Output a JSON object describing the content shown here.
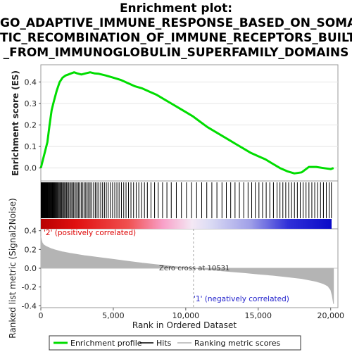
{
  "title_lines": [
    "Enrichment plot:",
    "GO_ADAPTIVE_IMMUNE_RESPONSE_BASED_ON_SOMA",
    "TIC_RECOMBINATION_OF_IMMUNE_RECEPTORS_BUILT",
    "_FROM_IMMUNOGLOBULIN_SUPERFAMILY_DOMAINS"
  ],
  "chart_data": {
    "type": "line",
    "title": "Enrichment plot: GO_ADAPTIVE_IMMUNE_RESPONSE_BASED_ON_SOMATIC_RECOMBINATION_OF_IMMUNE_RECEPTORS_BUILT_FROM_IMMUNOGLOBULIN_SUPERFAMILY_DOMAINS",
    "xlabel": "Rank in Ordered Dataset",
    "xlim": [
      0,
      20500
    ],
    "x_ticks": [
      0,
      5000,
      10000,
      15000,
      20000
    ],
    "x_tick_labels": [
      "0",
      "5,000",
      "10,000",
      "15,000",
      "20,000"
    ],
    "es_panel": {
      "ylabel": "Enrichment score (ES)",
      "ylim": [
        -0.06,
        0.48
      ],
      "y_ticks": [
        0.0,
        0.1,
        0.2,
        0.3,
        0.4
      ],
      "y_tick_labels": [
        "0.0",
        "0.1",
        "0.2",
        "0.3",
        "0.4"
      ],
      "series": [
        {
          "name": "Enrichment profile",
          "color": "#00dd00",
          "x": [
            0,
            150,
            300,
            450,
            600,
            750,
            900,
            1100,
            1300,
            1500,
            1700,
            1900,
            2100,
            2300,
            2500,
            2800,
            3100,
            3400,
            3700,
            4000,
            4500,
            5000,
            5500,
            6000,
            6500,
            7000,
            7500,
            8000,
            8500,
            9000,
            9500,
            10000,
            10500,
            11000,
            11500,
            12000,
            12500,
            13000,
            13500,
            14000,
            14500,
            15000,
            15500,
            16000,
            16500,
            17000,
            17500,
            18000,
            18200,
            18500,
            19000,
            19500,
            20000,
            20200
          ],
          "y": [
            0.0,
            0.04,
            0.08,
            0.12,
            0.2,
            0.27,
            0.31,
            0.36,
            0.4,
            0.42,
            0.43,
            0.435,
            0.44,
            0.445,
            0.44,
            0.435,
            0.44,
            0.445,
            0.44,
            0.438,
            0.43,
            0.42,
            0.41,
            0.395,
            0.38,
            0.37,
            0.355,
            0.34,
            0.32,
            0.3,
            0.28,
            0.26,
            0.24,
            0.215,
            0.19,
            0.17,
            0.15,
            0.13,
            0.11,
            0.09,
            0.07,
            0.055,
            0.04,
            0.02,
            0.0,
            -0.015,
            -0.025,
            -0.02,
            -0.01,
            0.005,
            0.005,
            0.0,
            -0.005,
            0.0
          ]
        }
      ]
    },
    "hits_panel": {
      "legend_label": "Hits",
      "hit_ranks": [
        20,
        40,
        60,
        80,
        110,
        140,
        170,
        200,
        230,
        260,
        290,
        320,
        350,
        380,
        410,
        440,
        470,
        500,
        540,
        580,
        620,
        660,
        700,
        740,
        780,
        820,
        860,
        900,
        950,
        1000,
        1050,
        1100,
        1150,
        1200,
        1260,
        1320,
        1380,
        1440,
        1500,
        1570,
        1640,
        1710,
        1780,
        1850,
        1930,
        2010,
        2090,
        2170,
        2250,
        2340,
        2430,
        2520,
        2610,
        2700,
        2800,
        2900,
        3000,
        3100,
        3200,
        3300,
        3400,
        3520,
        3640,
        3760,
        3880,
        4000,
        4130,
        4260,
        4390,
        4520,
        4650,
        4800,
        4950,
        5100,
        5250,
        5400,
        5560,
        5720,
        5880,
        6050,
        6220,
        6400,
        6580,
        6760,
        6950,
        7150,
        7350,
        7600,
        7850,
        8100,
        8400,
        8700,
        9000,
        9350,
        9700,
        10050,
        10400,
        10750,
        11100,
        11450,
        11800,
        12150,
        12500,
        12800,
        13100,
        13400,
        13700,
        14000,
        14300,
        14550,
        14800,
        15050,
        15300,
        15550,
        15800,
        16050,
        16300,
        16500,
        16700,
        16900,
        17100,
        17300,
        17500,
        17700,
        17900,
        18100,
        18300,
        18500,
        18700,
        18900,
        19100,
        19300,
        19500,
        19700,
        19900,
        20050
      ]
    },
    "ranked_panel": {
      "ylabel": "Ranked list metric (Signal2Noise)",
      "ylim": [
        -0.42,
        0.42
      ],
      "y_ticks": [
        -0.4,
        -0.2,
        0.0,
        0.2,
        0.4
      ],
      "y_tick_labels": [
        "-0.4",
        "-0.2",
        "0.0",
        "0.2",
        "0.4"
      ],
      "series": [
        {
          "name": "Ranking metric scores",
          "color": "#b4b4b4",
          "x": [
            0,
            50,
            100,
            200,
            400,
            700,
            1000,
            1500,
            2000,
            3000,
            4000,
            5000,
            6000,
            7000,
            8000,
            9000,
            10000,
            10531,
            11000,
            12000,
            13000,
            14000,
            15000,
            16000,
            17000,
            18000,
            18500,
            19000,
            19500,
            19800,
            20000,
            20100,
            20200
          ],
          "y": [
            0.34,
            0.3,
            0.27,
            0.25,
            0.23,
            0.21,
            0.195,
            0.175,
            0.16,
            0.135,
            0.115,
            0.095,
            0.075,
            0.055,
            0.038,
            0.022,
            0.008,
            0.0,
            -0.008,
            -0.022,
            -0.035,
            -0.048,
            -0.062,
            -0.076,
            -0.092,
            -0.11,
            -0.125,
            -0.14,
            -0.165,
            -0.19,
            -0.23,
            -0.29,
            -0.38
          ]
        }
      ],
      "zero_cross_rank": 10531,
      "zero_cross_label": "Zero cross at 10531",
      "positive_label": "'2' (positively correlated)",
      "negative_label": "'1' (negatively correlated)"
    },
    "legend": {
      "placement": "bottom",
      "entries": [
        "Enrichment profile",
        "Hits",
        "Ranking metric scores"
      ]
    }
  },
  "colors": {
    "es_line": "#00dd00",
    "hits": "#000000",
    "metric_fill": "#b4b4b4",
    "positive_text": "#dd0000",
    "negative_text": "#2222cc",
    "heat_red": "#e00000",
    "heat_blue": "#1010d0"
  }
}
